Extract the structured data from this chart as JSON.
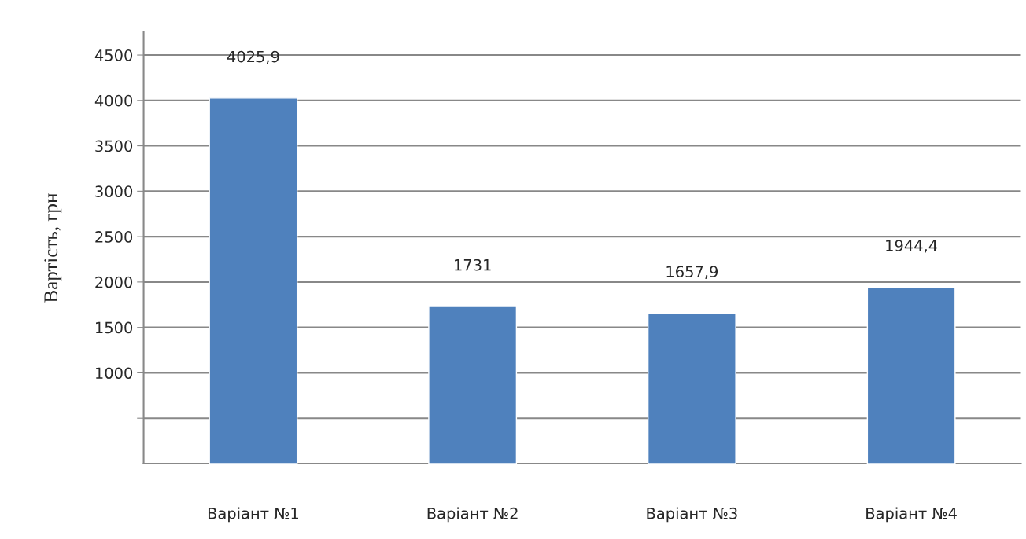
{
  "chart_data": {
    "type": "bar",
    "ylabel": "Вартість, грн",
    "categories": [
      "Варіант №1",
      "Варіант №2",
      "Варіант №3",
      "Варіант №4"
    ],
    "values": [
      4025.9,
      1731,
      1657.9,
      1944.4
    ],
    "value_labels": [
      "4025,9",
      "1731",
      "1657,9",
      "1944,4"
    ],
    "color": "#4f81bd",
    "ylim": [
      0,
      4750
    ],
    "yticks": [
      {
        "value": 500,
        "label": null
      },
      1000,
      1500,
      2000,
      2500,
      3000,
      3500,
      4000,
      4500
    ],
    "grid": "y"
  }
}
